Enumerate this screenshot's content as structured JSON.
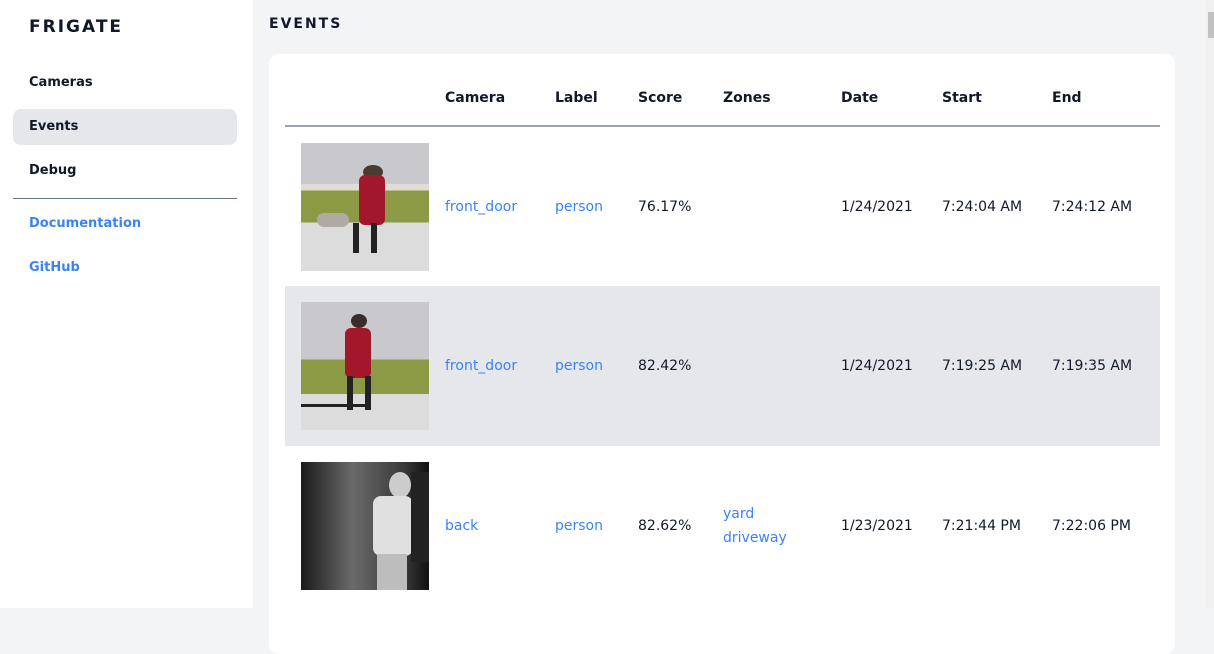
{
  "sidebar": {
    "brand": "FRIGATE",
    "items": [
      {
        "label": "Cameras"
      },
      {
        "label": "Events"
      },
      {
        "label": "Debug"
      }
    ],
    "links": [
      {
        "label": "Documentation"
      },
      {
        "label": "GitHub"
      }
    ]
  },
  "page": {
    "title": "EVENTS"
  },
  "table": {
    "headers": [
      "",
      "Camera",
      "Label",
      "Score",
      "Zones",
      "Date",
      "Start",
      "End"
    ],
    "rows": [
      {
        "camera": "front_door",
        "label": "person",
        "score": "76.17%",
        "zones": [
          "",
          ""
        ],
        "date": "1/24/2021",
        "start": "7:24:04 AM",
        "end": "7:24:12 AM"
      },
      {
        "camera": "front_door",
        "label": "person",
        "score": "82.42%",
        "zones": [
          "",
          ""
        ],
        "date": "1/24/2021",
        "start": "7:19:25 AM",
        "end": "7:19:35 AM"
      },
      {
        "camera": "back",
        "label": "person",
        "score": "82.62%",
        "zones": [
          "yard",
          "driveway"
        ],
        "date": "1/23/2021",
        "start": "7:21:44 PM",
        "end": "7:22:06 PM"
      }
    ]
  },
  "colors": {
    "accent": "#3b82f6",
    "active_bg": "#e5e7eb",
    "bg": "#f3f4f6"
  }
}
